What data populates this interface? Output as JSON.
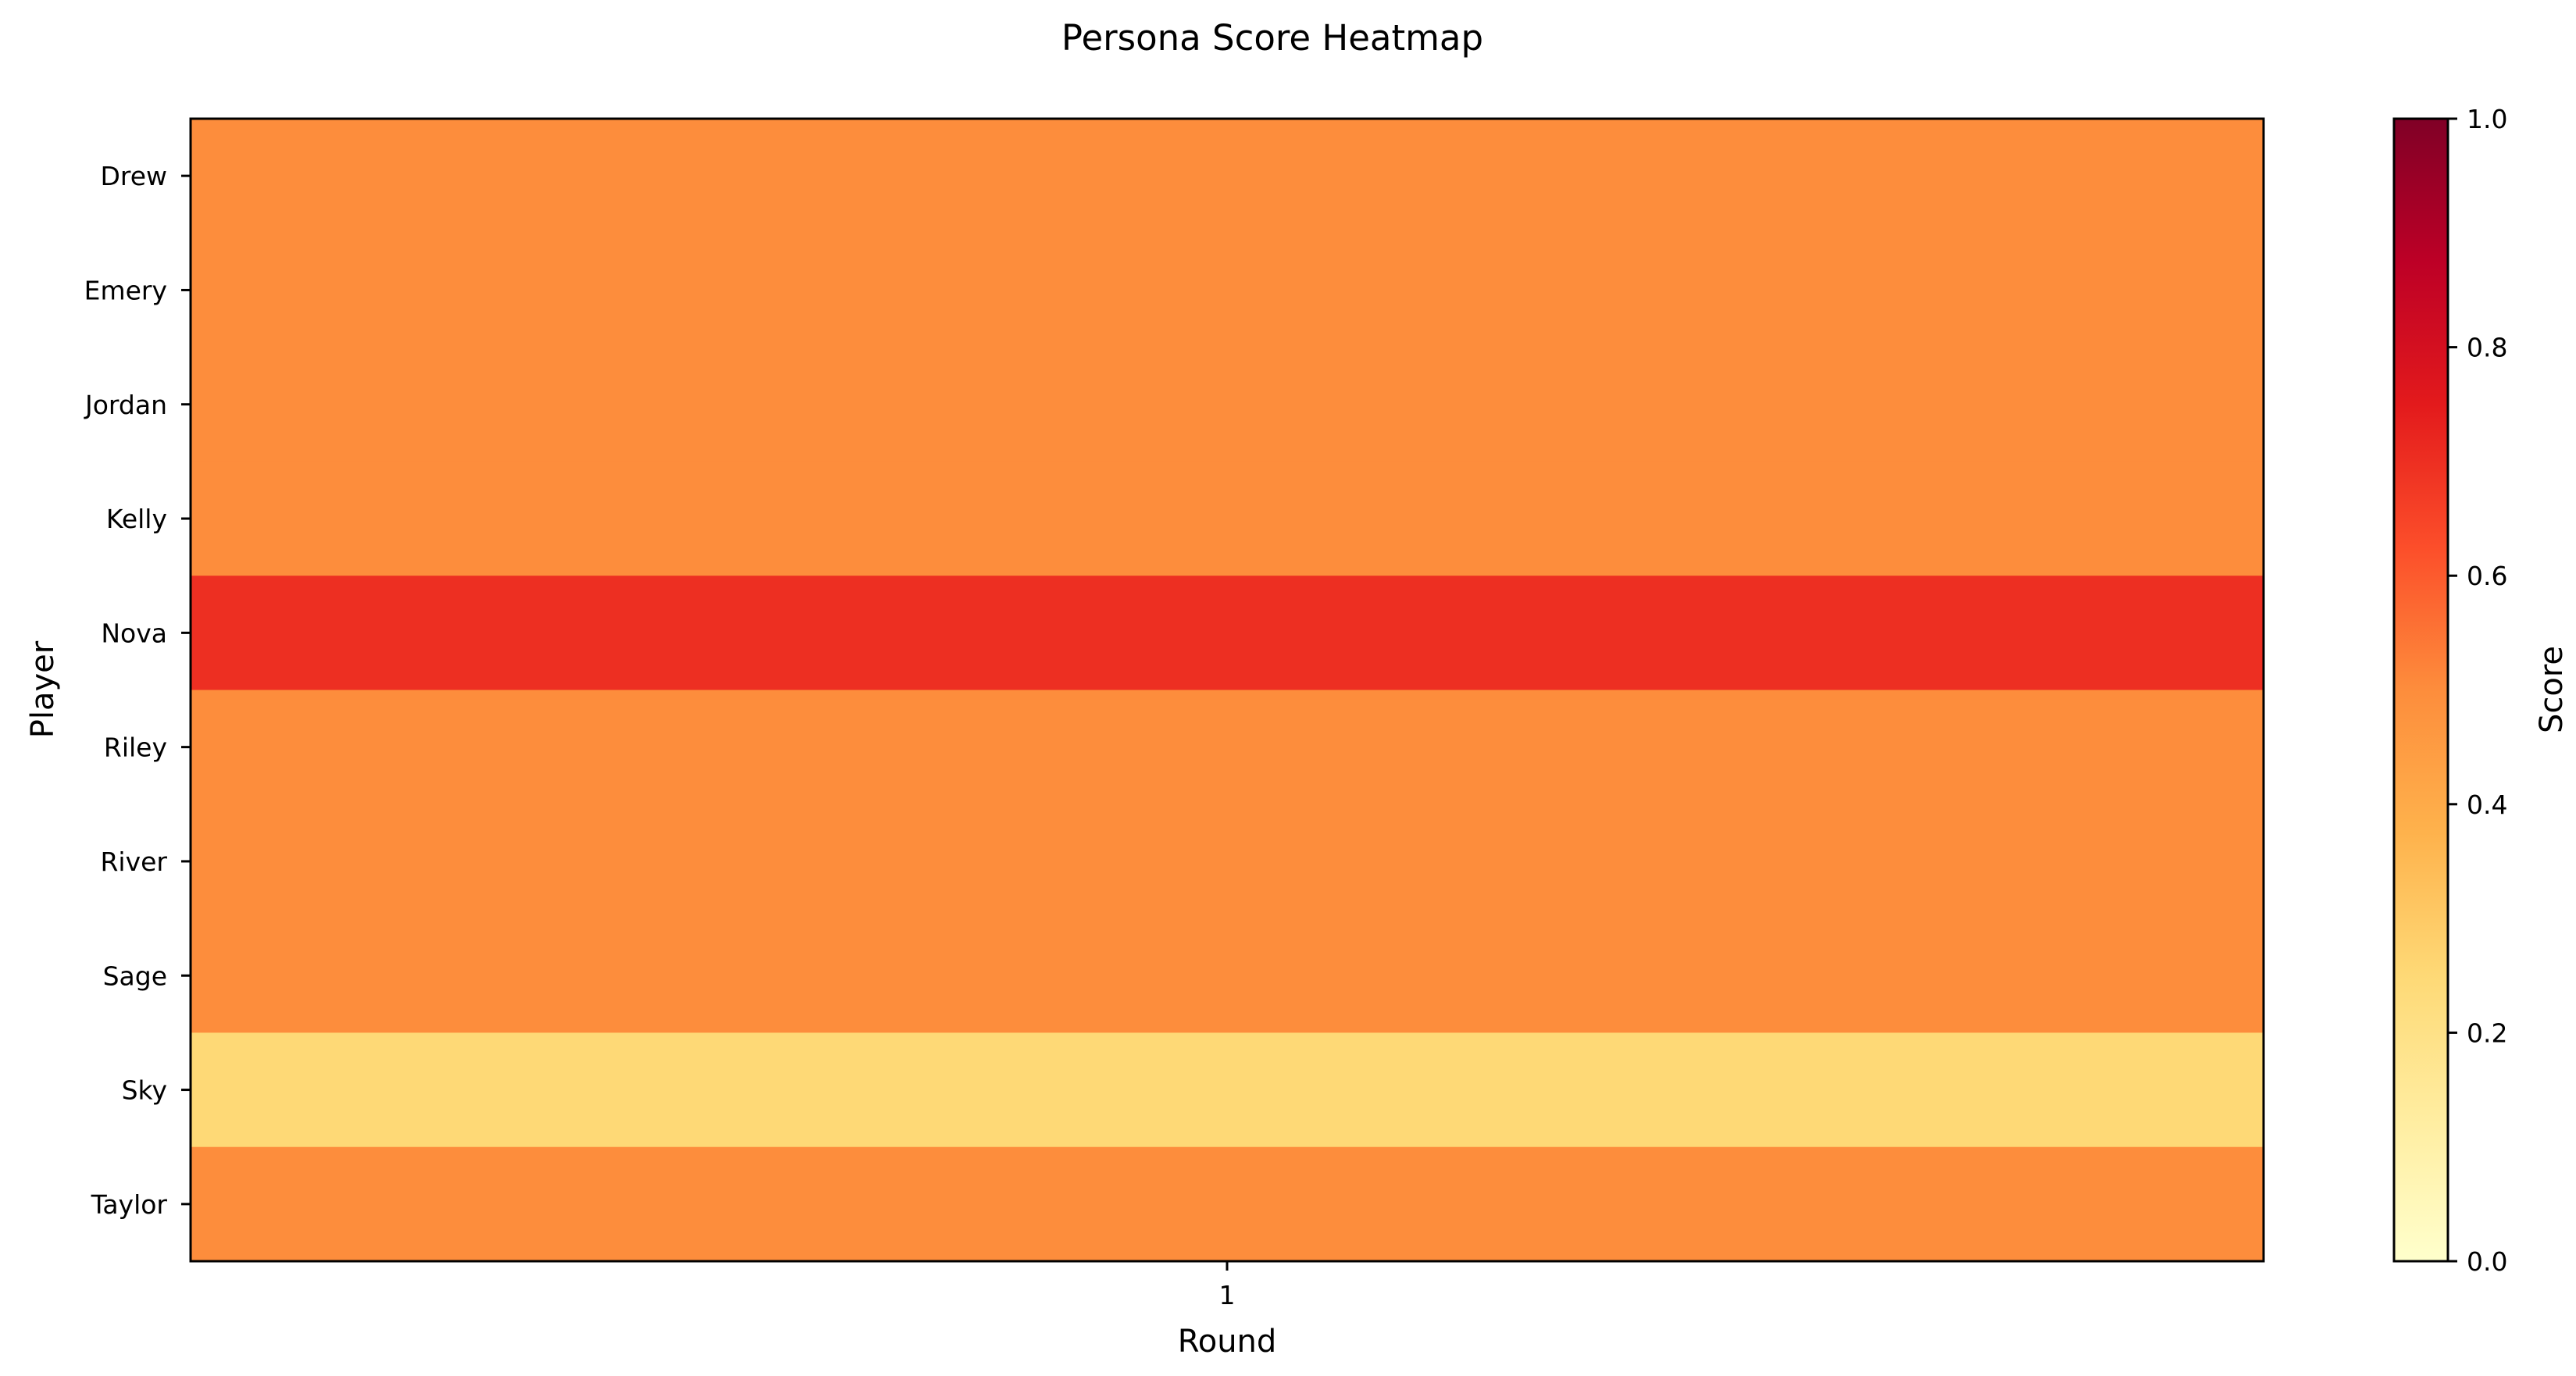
{
  "chart_data": {
    "type": "heatmap",
    "title": "Persona Score Heatmap",
    "xlabel": "Round",
    "ylabel": "Player",
    "x_categories": [
      "1"
    ],
    "y_categories": [
      "Drew",
      "Emery",
      "Jordan",
      "Kelly",
      "Nova",
      "Riley",
      "River",
      "Sage",
      "Sky",
      "Taylor"
    ],
    "values": [
      [
        0.5
      ],
      [
        0.5
      ],
      [
        0.5
      ],
      [
        0.5
      ],
      [
        0.7
      ],
      [
        0.5
      ],
      [
        0.5
      ],
      [
        0.5
      ],
      [
        0.25
      ],
      [
        0.5
      ]
    ],
    "colormap": "YlOrRd",
    "colorbar": {
      "label": "Score",
      "range": [
        0,
        1
      ],
      "ticks": [
        "0.0",
        "0.2",
        "0.4",
        "0.6",
        "0.8",
        "1.0"
      ],
      "tick_values": [
        0,
        0.2,
        0.4,
        0.6,
        0.8,
        1.0
      ]
    },
    "grid": false,
    "legend": "none"
  }
}
